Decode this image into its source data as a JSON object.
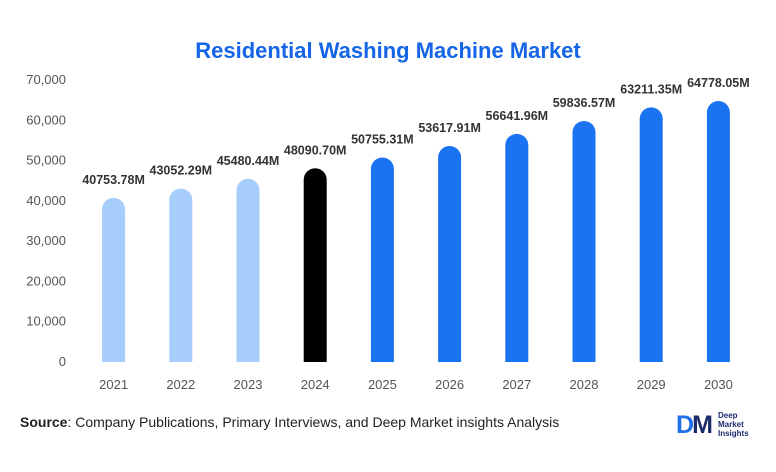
{
  "chart_data": {
    "type": "bar",
    "title": "Residential Washing Machine Market",
    "categories": [
      "2021",
      "2022",
      "2023",
      "2024",
      "2025",
      "2026",
      "2027",
      "2028",
      "2029",
      "2030"
    ],
    "values": [
      40753.78,
      43052.29,
      45480.44,
      48090.7,
      50755.31,
      53617.91,
      56641.96,
      59836.57,
      63211.35,
      64778.05
    ],
    "data_labels": [
      "40753.78M",
      "43052.29M",
      "45480.44M",
      "48090.70M",
      "50755.31M",
      "53617.91M",
      "56641.96M",
      "59836.57M",
      "63211.35M",
      "64778.05M"
    ],
    "bar_colors": [
      "#a6cdfb",
      "#a6cdfb",
      "#a6cdfb",
      "#000000",
      "#1a73f0",
      "#1a73f0",
      "#1a73f0",
      "#1a73f0",
      "#1a73f0",
      "#1a73f0"
    ],
    "y_ticks": [
      "0",
      "10,000",
      "20,000",
      "30,000",
      "40,000",
      "50,000",
      "60,000",
      "70,000"
    ],
    "y_tick_values": [
      0,
      10000,
      20000,
      30000,
      40000,
      50000,
      60000,
      70000
    ],
    "ylim": [
      0,
      70000
    ],
    "xlabel": "",
    "ylabel": "",
    "grid": false,
    "legend": "none"
  },
  "colors": {
    "title": "#1565e6",
    "history": "#a6cdfb",
    "base_year": "#000000",
    "forecast": "#1a73f0"
  },
  "footer": {
    "source_label": "Source",
    "source_text": ": Company Publications, Primary Interviews, and Deep Market insights Analysis"
  },
  "logo": {
    "mark_d": "D",
    "mark_m": "M",
    "line1": "Deep",
    "line2": "Market",
    "line3": "Insights"
  }
}
